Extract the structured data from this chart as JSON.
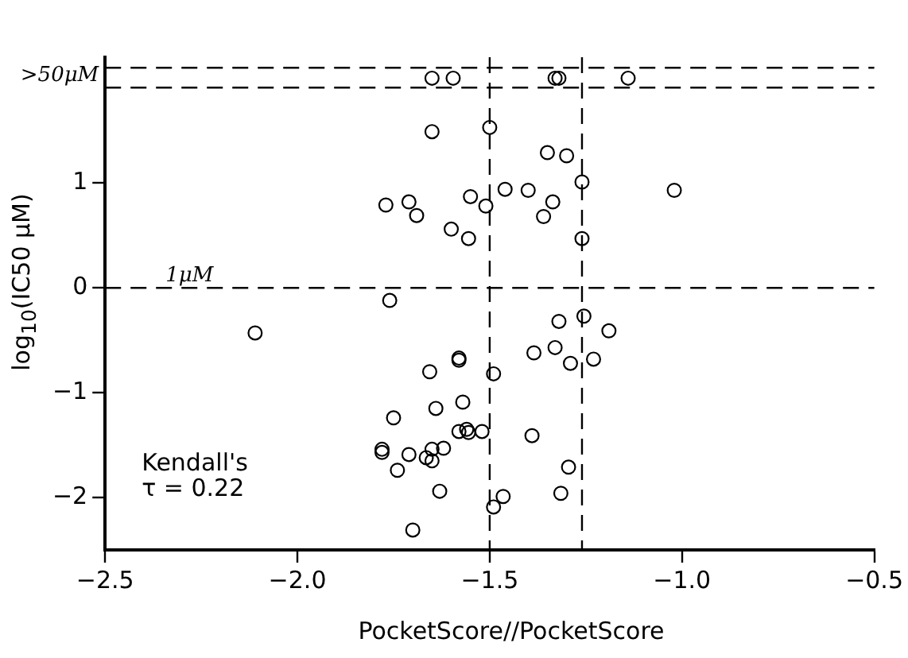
{
  "chart_data": {
    "type": "scatter",
    "xlabel": "PocketScore//PocketScore",
    "ylabel": "log$_{10}$(IC50 μM)",
    "xlim": [
      -2.5,
      -0.5
    ],
    "ylim": [
      -2.5,
      2.2
    ],
    "xticks": [
      {
        "value": -2.5,
        "label": "−2.5"
      },
      {
        "value": -2.0,
        "label": "−2.0"
      },
      {
        "value": -1.5,
        "label": "−1.5"
      },
      {
        "value": -1.0,
        "label": "−1.0"
      },
      {
        "value": -0.5,
        "label": "−0.5"
      }
    ],
    "yticks": [
      {
        "value": -2,
        "label": "−2"
      },
      {
        "value": -1,
        "label": "−1"
      },
      0,
      1
    ],
    "grid": false,
    "legend": false,
    "marker": "circle",
    "series": [
      {
        "color": "#000000",
        "x": [
          -1.65,
          -1.595,
          -1.33,
          -1.32,
          -1.14,
          -1.65,
          -1.5,
          -1.35,
          -1.3,
          -1.77,
          -1.71,
          -1.69,
          -1.6,
          -1.55,
          -1.51,
          -1.555,
          -1.46,
          -1.4,
          -1.36,
          -1.336,
          -1.26,
          -1.26,
          -1.02,
          -1.76,
          -2.11,
          -1.58,
          -1.58,
          -1.656,
          -1.49,
          -1.64,
          -1.57,
          -1.75,
          -1.58,
          -1.56,
          -1.555,
          -1.52,
          -1.78,
          -1.78,
          -1.71,
          -1.74,
          -1.665,
          -1.65,
          -1.65,
          -1.62,
          -1.63,
          -1.7,
          -1.49,
          -1.32,
          -1.255,
          -1.19,
          -1.385,
          -1.33,
          -1.29,
          -1.23,
          -1.39,
          -1.295,
          -1.315,
          -1.465
        ],
        "values": [
          2.0,
          2.0,
          2.0,
          2.0,
          2.0,
          1.49,
          1.53,
          1.29,
          1.26,
          0.79,
          0.82,
          0.69,
          0.56,
          0.87,
          0.78,
          0.47,
          0.94,
          0.93,
          0.68,
          0.82,
          1.01,
          0.47,
          0.93,
          -0.12,
          -0.43,
          -0.67,
          -0.69,
          -0.8,
          -0.82,
          -1.15,
          -1.09,
          -1.24,
          -1.37,
          -1.35,
          -1.38,
          -1.37,
          -1.54,
          -1.57,
          -1.59,
          -1.74,
          -1.62,
          -1.65,
          -1.54,
          -1.53,
          -1.94,
          -2.31,
          -2.09,
          -0.32,
          -0.27,
          -0.41,
          -0.62,
          -0.57,
          -0.72,
          -0.68,
          -1.41,
          -1.71,
          -1.96,
          -1.99
        ]
      }
    ],
    "ref_lines": [
      {
        "axis": "y",
        "value": 2.1,
        "label": null,
        "color": "#000000",
        "line_style": "dashed"
      },
      {
        "axis": "y",
        "value": 1.91,
        "label": ">50μM",
        "color": "#000000",
        "line_style": "dashed"
      },
      {
        "axis": "y",
        "value": 0,
        "label": "1μM",
        "color": "#000000",
        "line_style": "dashed"
      },
      {
        "axis": "x",
        "value": -1.5,
        "label": null,
        "color": "#000000",
        "line_style": "dashed"
      },
      {
        "axis": "x",
        "value": -1.26,
        "label": null,
        "color": "#000000",
        "line_style": "dashed"
      }
    ],
    "annotations": [
      "Kendall's\nτ = 0.22"
    ]
  }
}
